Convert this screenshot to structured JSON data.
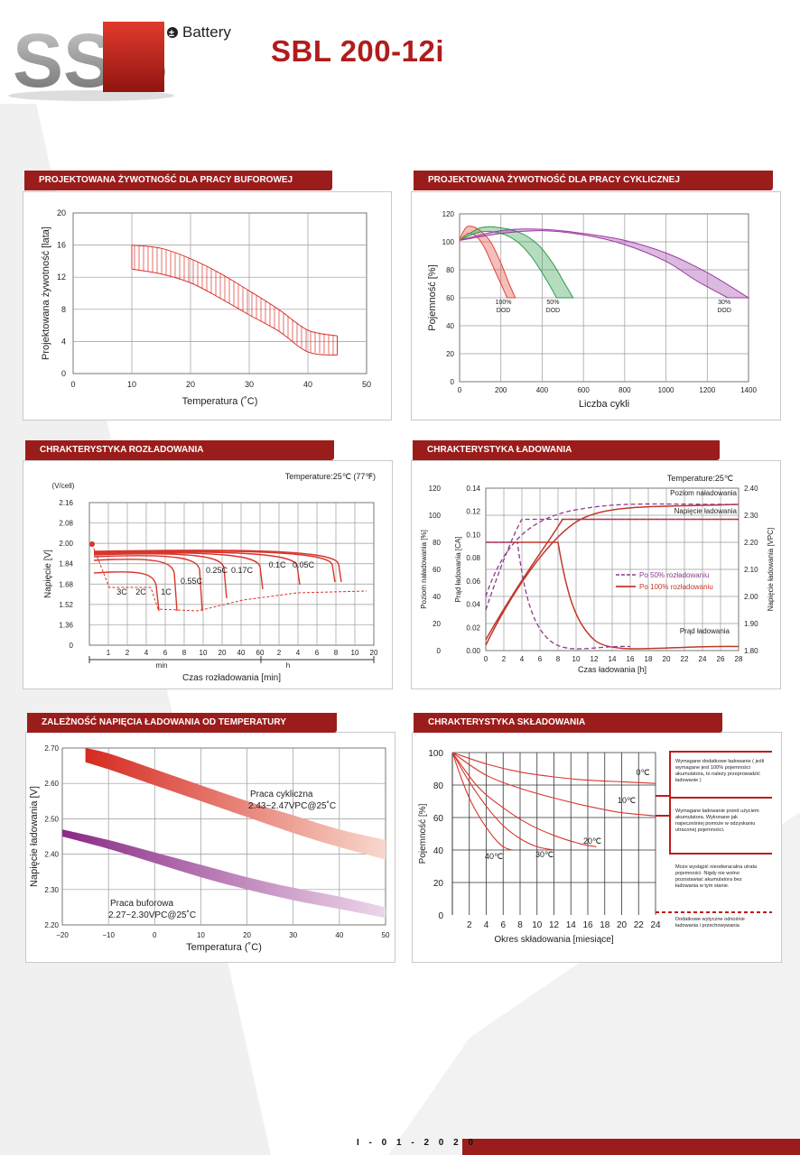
{
  "header": {
    "logo_text": "SSB",
    "logo_sub": "Battery",
    "model": "SBL 200-12i"
  },
  "panels": {
    "p1": "PROJEKTOWANA ŻYWOTNOŚĆ DLA PRACY BUFOROWEJ",
    "p2": "PROJEKTOWANA ŻYWOTNOŚĆ DLA PRACY CYKLICZNEJ",
    "p3": "CHRAKTERYSTYKA ROZŁADOWANIA",
    "p4": "CHRAKTERYSTYKA ŁADOWANIA",
    "p5": "ZALEŻNOŚĆ NAPIĘCIA ŁADOWANIA OD TEMPERATURY",
    "p6": "CHRAKTERYSTYKA SKŁADOWANIA"
  },
  "chart_data": [
    {
      "id": "float_life",
      "type": "area",
      "xlabel": "Temperatura (˚C)",
      "ylabel": "Projektowana żywotność [lata]",
      "xlim": [
        0,
        50
      ],
      "ylim": [
        0,
        20
      ],
      "xticks": [
        "0",
        "10",
        "20",
        "30",
        "40",
        "50"
      ],
      "yticks": [
        "0",
        "4",
        "8",
        "12",
        "16",
        "20"
      ],
      "grid": true,
      "upper": {
        "x": [
          10,
          15,
          20,
          25,
          30,
          35,
          40,
          45
        ],
        "y": [
          16,
          15.6,
          14.3,
          12.5,
          10.3,
          8,
          5.4,
          4.7
        ]
      },
      "lower": {
        "x": [
          10,
          15,
          20,
          25,
          30,
          35,
          40,
          45
        ],
        "y": [
          13,
          12.4,
          11.3,
          9.4,
          7.3,
          5.3,
          2.7,
          2.3
        ]
      }
    },
    {
      "id": "cycle_life",
      "type": "line",
      "xlabel": "Liczba cykli",
      "ylabel": "Pojemność [%]",
      "xlim": [
        0,
        1400
      ],
      "ylim": [
        0,
        120
      ],
      "xticks": [
        "0",
        "200",
        "400",
        "600",
        "800",
        "1000",
        "1200",
        "1400"
      ],
      "yticks": [
        "0",
        "20",
        "40",
        "60",
        "80",
        "100",
        "120"
      ],
      "grid": true,
      "series": [
        {
          "label1": "100%",
          "label2": "DOD",
          "color": "#e0453a",
          "upper": {
            "x": [
              0,
              30,
              60,
              100,
              150,
              200,
              240,
              270
            ],
            "y": [
              102,
              110,
              111,
              108,
              100,
              85,
              70,
              60
            ]
          },
          "lower": {
            "x": [
              0,
              40,
              80,
              120,
              160,
              200,
              230
            ],
            "y": [
              101,
              106,
              104,
              96,
              83,
              70,
              60
            ]
          }
        },
        {
          "label1": "50%",
          "label2": "DOD",
          "color": "#2e9a4a",
          "upper": {
            "x": [
              0,
              100,
              200,
              300,
              380,
              450,
              510,
              550
            ],
            "y": [
              101,
              110,
              110,
              106,
              98,
              85,
              70,
              60
            ]
          },
          "lower": {
            "x": [
              0,
              100,
              200,
              280,
              350,
              420,
              470
            ],
            "y": [
              101,
              107,
              106,
              100,
              89,
              73,
              60
            ]
          }
        },
        {
          "label1": "30%",
          "label2": "DOD",
          "color": "#9b3aa6",
          "upper": {
            "x": [
              0,
              200,
              400,
              600,
              800,
              1000,
              1200,
              1400
            ],
            "y": [
              101,
              108,
              109,
              106,
              101,
              92,
              78,
              60
            ]
          },
          "lower": {
            "x": [
              0,
              200,
              400,
              600,
              800,
              1000,
              1150,
              1300
            ],
            "y": [
              101,
              106,
              108,
              105,
              98,
              86,
              72,
              60
            ]
          }
        }
      ]
    },
    {
      "id": "discharge",
      "type": "line",
      "xlabel": "Czas rozładowania [min]",
      "ylabel": "Napięcie [V]",
      "yunit": "(V/cell)",
      "note": "Temperature:25℃ (77℉)",
      "yticks": [
        "0",
        "1.36",
        "1.52",
        "1.68",
        "1.84",
        "2.00",
        "2.08",
        "2.16"
      ],
      "xticks": [
        "1",
        "2",
        "4",
        "6",
        "8",
        "10",
        "20",
        "40",
        "60",
        "2",
        "4",
        "6",
        "8",
        "10",
        "20"
      ],
      "xgroups": [
        "min",
        "h"
      ],
      "grid": true,
      "curve_labels": [
        "3C",
        "2C",
        "1C",
        "0.55C",
        "0.25C",
        "0.17C",
        "0.1C",
        "0.05C"
      ]
    },
    {
      "id": "charge",
      "type": "line",
      "xlabel": "Czas ładowania [h]",
      "ylabel_left1": "Poziom naładowania [%]",
      "ylabel_left2": "Prąd ładowania [CA]",
      "ylabel_right": "Napięcie ładowania [VPC]",
      "note": "Temperature:25℃",
      "xticks": [
        "0",
        "2",
        "4",
        "6",
        "8",
        "10",
        "12",
        "14",
        "16",
        "18",
        "20",
        "22",
        "24",
        "26",
        "28"
      ],
      "yticks_pct": [
        "0",
        "20",
        "40",
        "60",
        "80",
        "100",
        "120"
      ],
      "yticks_ca": [
        "0.00",
        "0.02",
        "0.04",
        "0.06",
        "0.08",
        "0.10",
        "0.12",
        "0.14"
      ],
      "yticks_v": [
        "1.80",
        "1.90",
        "2.00",
        "2.10",
        "2.20",
        "2.30",
        "2.40"
      ],
      "grid": true,
      "annotations": [
        "Poziom naładowania",
        "Napięcie ładowania",
        "Prąd ładowania"
      ],
      "legend": [
        "Po 50% rozładowaniu",
        "Po 100% rozładowaniu"
      ]
    },
    {
      "id": "temp_voltage",
      "type": "area",
      "xlabel": "Temperatura (˚C)",
      "ylabel": "Napięcie ładowania [V]",
      "xlim": [
        -20,
        50
      ],
      "ylim": [
        2.2,
        2.7
      ],
      "xticks": [
        "−20",
        "−10",
        "0",
        "10",
        "20",
        "30",
        "40",
        "50"
      ],
      "yticks": [
        "2.20",
        "2.30",
        "2.40",
        "2.50",
        "2.60",
        "2.70"
      ],
      "grid": true,
      "series": [
        {
          "name": "Praca cykliczna",
          "detail": "2.43~2.47VPC@25˚C",
          "upper": {
            "x": [
              -15,
              -10,
              0,
              10,
              20,
              30,
              40,
              50
            ],
            "y": [
              2.7,
              2.685,
              2.64,
              2.595,
              2.55,
              2.51,
              2.47,
              2.44
            ]
          },
          "lower": {
            "x": [
              -15,
              -10,
              0,
              10,
              20,
              30,
              40,
              50
            ],
            "y": [
              2.66,
              2.64,
              2.595,
              2.55,
              2.505,
              2.46,
              2.42,
              2.385
            ]
          }
        },
        {
          "name": "Praca buforowa",
          "detail": "2.27~2.30VPC@25˚C",
          "upper": {
            "x": [
              -20,
              -10,
              0,
              10,
              20,
              30,
              40,
              50
            ],
            "y": [
              2.47,
              2.44,
              2.405,
              2.37,
              2.335,
              2.305,
              2.28,
              2.25
            ]
          },
          "lower": {
            "x": [
              -20,
              -10,
              0,
              10,
              20,
              30,
              40,
              50
            ],
            "y": [
              2.45,
              2.415,
              2.375,
              2.335,
              2.3,
              2.27,
              2.245,
              2.22
            ]
          }
        }
      ]
    },
    {
      "id": "storage",
      "type": "line",
      "xlabel": "Okres składowania [miesiące]",
      "ylabel": "Pojemność [%]",
      "xlim": [
        0,
        24
      ],
      "ylim": [
        0,
        100
      ],
      "xticks": [
        "2",
        "4",
        "6",
        "8",
        "10",
        "12",
        "14",
        "16",
        "18",
        "20",
        "22",
        "24"
      ],
      "yticks": [
        "0",
        "20",
        "40",
        "60",
        "80",
        "100"
      ],
      "grid": true,
      "series": [
        {
          "name": "0℃",
          "x": [
            0,
            4,
            8,
            12,
            16,
            20,
            24
          ],
          "y": [
            100,
            93,
            88,
            85,
            83,
            82,
            81
          ]
        },
        {
          "name": "10℃",
          "x": [
            0,
            4,
            8,
            12,
            16,
            20,
            24
          ],
          "y": [
            100,
            86,
            78,
            72,
            67,
            63,
            61
          ]
        },
        {
          "name": "20℃",
          "x": [
            0,
            3,
            6,
            9,
            12,
            15,
            17
          ],
          "y": [
            100,
            79,
            66,
            56,
            49,
            44,
            42
          ]
        },
        {
          "name": "30℃",
          "x": [
            0,
            2,
            4,
            6,
            8,
            10,
            12
          ],
          "y": [
            100,
            82,
            67,
            55,
            47,
            42,
            40
          ]
        },
        {
          "name": "40℃",
          "x": [
            0,
            1,
            2,
            3,
            4,
            5,
            6,
            7
          ],
          "y": [
            100,
            85,
            72,
            62,
            54,
            47,
            42,
            40
          ]
        }
      ],
      "notes": [
        "Wymagane dodatkowe ładowanie ( jeśli wymagane jest 100% pojemności akumulatora, to należy przeprowadzić ładowanie )",
        "Wymagane ładowanie przed użyciem akumulatora. Wykonane jak najwcześniej pomoże w odzyskaniu utraconej pojemności.",
        "Może wystąpić nieodwracalna utrata pojemności. Nigdy nie wolno pozostawiać akumulatora bez ładowania w tym stanie.",
        "Dodatkowe wytyczne odnośnie ładowania i przechowywania"
      ]
    }
  ],
  "footer": {
    "date": "I - 0 1 - 2 0 2 0"
  }
}
